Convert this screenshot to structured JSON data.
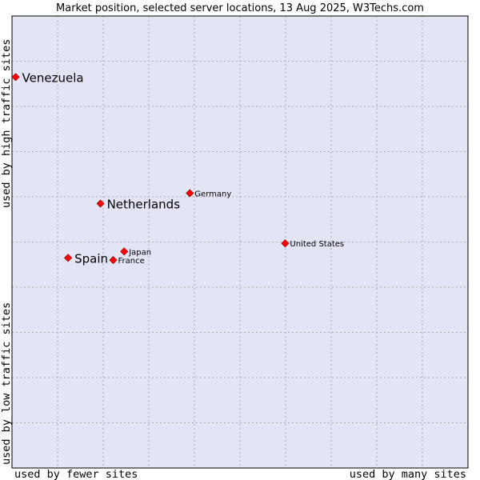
{
  "chart_data": {
    "type": "scatter",
    "title": "Market position, selected server locations, 13 Aug 2025, W3Techs.com",
    "xlabel_left": "used by fewer sites",
    "xlabel_right": "used by many sites",
    "ylabel_bottom": "used by low traffic sites",
    "ylabel_top": "used by high traffic sites",
    "xlim": [
      0,
      10
    ],
    "ylim": [
      0,
      10
    ],
    "grid": true,
    "colors": {
      "plot_bg": "#e3e5f6",
      "grid": "#aaaaaa",
      "frame": "#000000",
      "marker": "#ff0000",
      "marker_edge": "#aa0000"
    },
    "points": [
      {
        "label": "Venezuela",
        "x": 0.08,
        "y": 8.65,
        "highlight": true
      },
      {
        "label": "Netherlands",
        "x": 1.94,
        "y": 5.85,
        "highlight": true
      },
      {
        "label": "Spain",
        "x": 1.23,
        "y": 4.65,
        "highlight": true
      },
      {
        "label": "Germany",
        "x": 3.9,
        "y": 6.08,
        "highlight": false
      },
      {
        "label": "Japan",
        "x": 2.46,
        "y": 4.79,
        "highlight": false
      },
      {
        "label": "France",
        "x": 2.22,
        "y": 4.6,
        "highlight": false
      },
      {
        "label": "United States",
        "x": 5.99,
        "y": 4.97,
        "highlight": false
      }
    ]
  }
}
